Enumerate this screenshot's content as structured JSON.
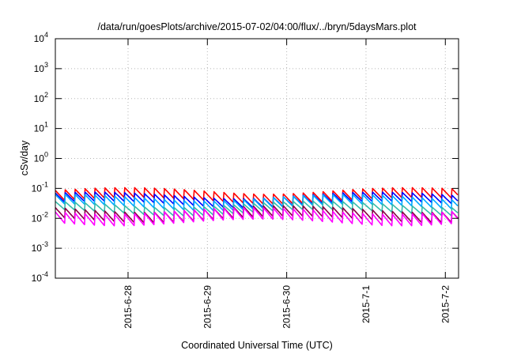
{
  "chart_data": {
    "type": "line",
    "title": "/data/run/goesPlots/archive/2015-07-02/04:00/flux/../bryn/5daysMars.plot",
    "xlabel": "Coordinated Universal Time (UTC)",
    "ylabel": "cSv/day",
    "yscale": "log",
    "ylim": [
      0.0001,
      10000
    ],
    "xlim": [
      "2015-06-27 02:00",
      "2015-07-02 04:00"
    ],
    "grid": true,
    "y_ticks": [
      {
        "base": "10",
        "exp": "4",
        "value": 10000
      },
      {
        "base": "10",
        "exp": "3",
        "value": 1000
      },
      {
        "base": "10",
        "exp": "2",
        "value": 100
      },
      {
        "base": "10",
        "exp": "1",
        "value": 10
      },
      {
        "base": "10",
        "exp": "0",
        "value": 1
      },
      {
        "base": "10",
        "exp": "-1",
        "value": 0.1
      },
      {
        "base": "10",
        "exp": "-2",
        "value": 0.01
      },
      {
        "base": "10",
        "exp": "-3",
        "value": 0.001
      },
      {
        "base": "10",
        "exp": "-4",
        "value": 0.0001
      }
    ],
    "x_ticks": [
      {
        "label": "2015-6-28",
        "value": "2015-06-28"
      },
      {
        "label": "2015-6-29",
        "value": "2015-06-29"
      },
      {
        "label": "2015-6-30",
        "value": "2015-06-30"
      },
      {
        "label": "2015-7-1",
        "value": "2015-07-01"
      },
      {
        "label": "2015-7-2",
        "value": "2015-07-02"
      }
    ],
    "sawtooth_period_hours": 3,
    "series": [
      {
        "color": "#ff0000",
        "peak": 0.085,
        "trough": 0.04
      },
      {
        "color": "#0000ff",
        "peak": 0.06,
        "trough": 0.03
      },
      {
        "color": "#00aaff",
        "peak": 0.05,
        "trough": 0.024
      },
      {
        "color": "#33bbaa",
        "peak": 0.03,
        "trough": 0.016
      },
      {
        "color": "#880044",
        "peak": 0.021,
        "trough": 0.0095
      },
      {
        "color": "#ff00ff",
        "peak": 0.018,
        "trough": 0.0075
      }
    ]
  }
}
